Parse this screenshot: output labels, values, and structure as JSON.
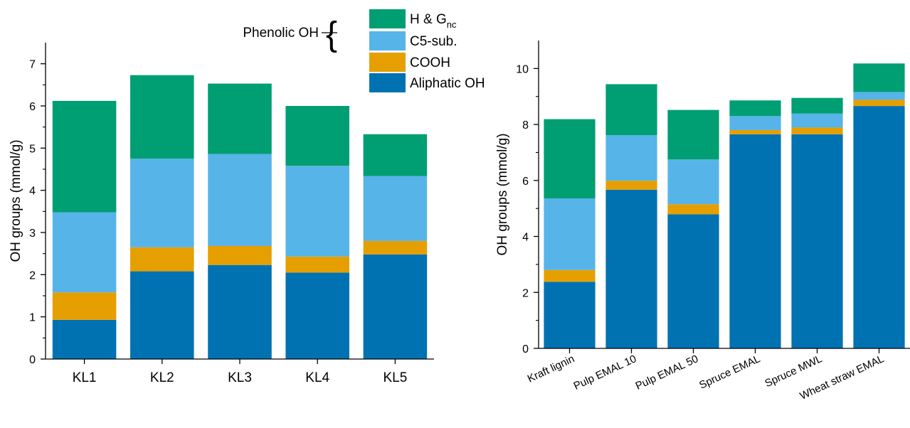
{
  "colors": {
    "aliphatic": "#0072b2",
    "cooh": "#e69f00",
    "c5sub": "#56b4e9",
    "hg": "#009e73"
  },
  "legend": {
    "group_label": "Phenolic OH",
    "items": [
      {
        "key": "hg",
        "label": "H & G",
        "sub": "nc"
      },
      {
        "key": "c5sub",
        "label": "C5-sub.",
        "sub": ""
      },
      {
        "key": "cooh",
        "label": "COOH",
        "sub": ""
      },
      {
        "key": "aliphatic",
        "label": "Aliphatic OH",
        "sub": ""
      }
    ]
  },
  "chart_data": [
    {
      "type": "bar",
      "stacked": true,
      "categories": [
        "KL1",
        "KL2",
        "KL3",
        "KL4",
        "KL5"
      ],
      "ylabel": "OH groups (mmol/g)",
      "ylim": [
        0,
        7.5
      ],
      "yticks": [
        0,
        1,
        2,
        3,
        4,
        5,
        6,
        7
      ],
      "series": [
        {
          "name": "Aliphatic OH",
          "key": "aliphatic",
          "values": [
            0.93,
            2.08,
            2.23,
            2.05,
            2.48
          ]
        },
        {
          "name": "COOH",
          "key": "cooh",
          "values": [
            0.65,
            0.57,
            0.45,
            0.38,
            0.32
          ]
        },
        {
          "name": "C5-sub.",
          "key": "c5sub",
          "values": [
            1.9,
            2.1,
            2.18,
            2.15,
            1.54
          ]
        },
        {
          "name": "H & Gnc",
          "key": "hg",
          "values": [
            2.64,
            1.98,
            1.67,
            1.42,
            0.99
          ]
        }
      ]
    },
    {
      "type": "bar",
      "stacked": true,
      "categories": [
        "Kraft lignin",
        "Pulp EMAL 10",
        "Pulp EMAL 50",
        "Spruce EMAL",
        "Spruce MWL",
        "Wheat straw EMAL"
      ],
      "ylabel": "OH groups (mmol/g)",
      "ylim": [
        0,
        11
      ],
      "yticks": [
        0,
        2,
        4,
        6,
        8,
        10
      ],
      "series": [
        {
          "name": "Aliphatic OH",
          "key": "aliphatic",
          "values": [
            2.38,
            5.67,
            4.79,
            7.65,
            7.65,
            8.66
          ]
        },
        {
          "name": "COOH",
          "key": "cooh",
          "values": [
            0.42,
            0.32,
            0.36,
            0.15,
            0.24,
            0.22
          ]
        },
        {
          "name": "C5-sub.",
          "key": "c5sub",
          "values": [
            2.56,
            1.63,
            1.6,
            0.5,
            0.5,
            0.28
          ]
        },
        {
          "name": "H & Gnc",
          "key": "hg",
          "values": [
            2.83,
            1.82,
            1.77,
            0.56,
            0.56,
            1.02
          ]
        }
      ]
    }
  ]
}
